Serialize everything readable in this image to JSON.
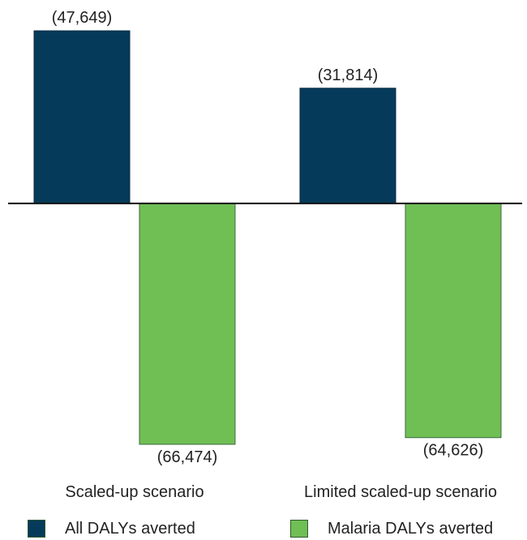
{
  "colors": {
    "all_dalys": "#063a5a",
    "malaria_dalys": "#6fbf55",
    "text": "#222222",
    "axis": "#111111"
  },
  "legend": {
    "items": [
      {
        "label": "All DALYs averted",
        "color": "#063a5a"
      },
      {
        "label": "Malaria DALYs averted",
        "color": "#6fbf55"
      }
    ]
  },
  "chart_data": {
    "type": "bar",
    "categories": [
      "Scaled-up scenario",
      "Limited scaled-up scenario"
    ],
    "series": [
      {
        "name": "All DALYs averted",
        "values": [
          47649,
          31814
        ],
        "labels": [
          "(47,649)",
          "(31,814)"
        ],
        "color": "#063a5a"
      },
      {
        "name": "Malaria DALYs averted",
        "values": [
          -66474,
          -64626
        ],
        "labels": [
          "(66,474)",
          "(64,626)"
        ],
        "color": "#6fbf55"
      }
    ],
    "title": "",
    "xlabel": "",
    "ylabel": "",
    "ylim": [
      -66474,
      47649
    ],
    "grid": false,
    "legend_position": "bottom"
  }
}
